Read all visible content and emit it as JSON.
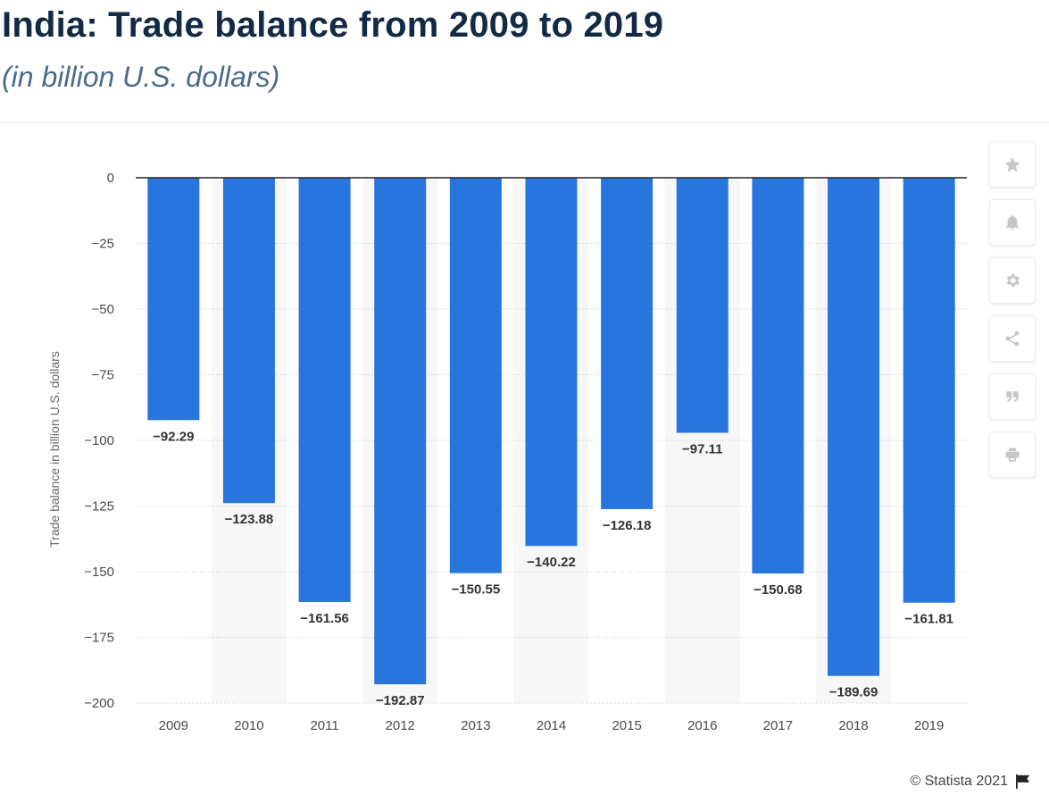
{
  "header": {
    "title": "India: Trade balance from 2009 to 2019",
    "subtitle": "(in billion U.S. dollars)"
  },
  "footer": {
    "credit": "© Statista 2021"
  },
  "toolbar": {
    "icons": [
      "star-icon",
      "bell-icon",
      "gear-icon",
      "share-icon",
      "quote-icon",
      "print-icon"
    ]
  },
  "colors": {
    "bar": "#2876dd",
    "title": "#122a44",
    "subtitle": "#4d6a8c",
    "band": "#f7f7f7"
  },
  "chart_data": {
    "type": "bar",
    "categories": [
      "2009",
      "2010",
      "2011",
      "2012",
      "2013",
      "2014",
      "2015",
      "2016",
      "2017",
      "2018",
      "2019"
    ],
    "values": [
      -92.29,
      -123.88,
      -161.56,
      -192.87,
      -150.55,
      -140.22,
      -126.18,
      -97.11,
      -150.68,
      -189.69,
      -161.81
    ],
    "value_labels": [
      "−92.29",
      "−123.88",
      "−161.56",
      "−192.87",
      "−150.55",
      "−140.22",
      "−126.18",
      "−97.11",
      "−150.68",
      "−189.69",
      "−161.81"
    ],
    "ylabel": "Trade balance in billion U.S. dollars",
    "ylim": [
      -200,
      0
    ],
    "yticks": [
      0,
      -25,
      -50,
      -75,
      -100,
      -125,
      -150,
      -175,
      -200
    ],
    "ytick_labels": [
      "0",
      "−25",
      "−50",
      "−75",
      "−100",
      "−125",
      "−150",
      "−175",
      "−200"
    ],
    "grid": true,
    "legend": "none"
  }
}
